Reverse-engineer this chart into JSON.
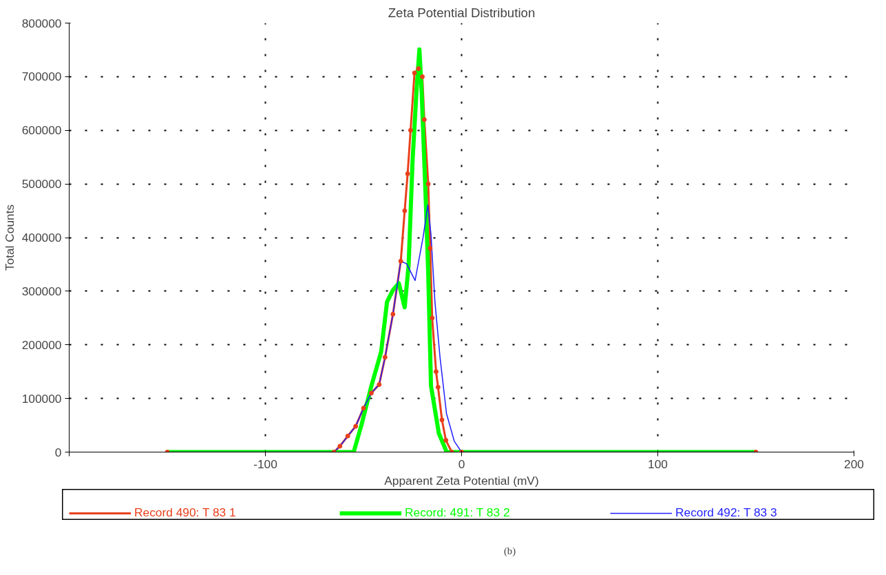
{
  "chart_data": {
    "type": "line",
    "title": "Zeta Potential Distribution",
    "xlabel": "Apparent Zeta Potential (mV)",
    "ylabel": "Total Counts",
    "xlim": [
      -200,
      200
    ],
    "xticks": [
      {
        "value": -200,
        "label": null
      },
      -100,
      0,
      100,
      200
    ],
    "ylim": [
      0,
      800000
    ],
    "yticks": [
      0,
      100000,
      200000,
      300000,
      400000,
      500000,
      600000,
      700000,
      800000
    ],
    "grid": true,
    "legend": "bottom",
    "annotations": [
      "(b)"
    ],
    "series": [
      {
        "name": "Record 490: T 83 1",
        "color": "#e8401c",
        "marker": "circle",
        "x": [
          -150,
          -65,
          -62,
          -58,
          -54,
          -50,
          -46,
          -42,
          -39,
          -35,
          -31,
          -29,
          -27.5,
          -26,
          -24,
          -22,
          -20,
          -19,
          -17,
          -16,
          -15,
          -13,
          -12,
          -10,
          -8,
          -5,
          0,
          150
        ],
        "values": [
          0,
          0,
          11000,
          30000,
          48000,
          82000,
          110000,
          126000,
          177000,
          257000,
          356000,
          450000,
          519000,
          600000,
          707000,
          715000,
          700000,
          620000,
          500000,
          380000,
          250000,
          150000,
          121000,
          60000,
          22000,
          0,
          0,
          0
        ]
      },
      {
        "name": "Record: 491: T 83 2",
        "color": "#00ff00",
        "x": [
          -150,
          -55,
          -51,
          -46,
          -41,
          -38,
          -35,
          -32,
          -29,
          -27,
          -25,
          -23,
          -21.5,
          -20.3,
          -18.2,
          -17,
          -15.6,
          -11.6,
          -7.6,
          150
        ],
        "values": [
          0,
          0,
          51000,
          123000,
          187000,
          280000,
          302000,
          315000,
          270000,
          349000,
          542000,
          672000,
          751000,
          667000,
          464000,
          333000,
          124000,
          35000,
          0,
          0
        ]
      },
      {
        "name": "Record 492: T 83 3",
        "color": "#1f1fff",
        "x": [
          -150,
          -65,
          -62,
          -58,
          -54,
          -50,
          -46,
          -42,
          -39,
          -35,
          -31,
          -28,
          -23.7,
          -19.6,
          -17.2,
          -15.6,
          -13.6,
          -11,
          -7.7,
          -3.7,
          0,
          150
        ],
        "values": [
          0,
          0,
          11000,
          30000,
          48000,
          82000,
          110000,
          126000,
          177000,
          257000,
          356000,
          351000,
          320000,
          401000,
          461000,
          406000,
          281000,
          177000,
          72000,
          20000,
          0,
          0
        ]
      }
    ]
  }
}
